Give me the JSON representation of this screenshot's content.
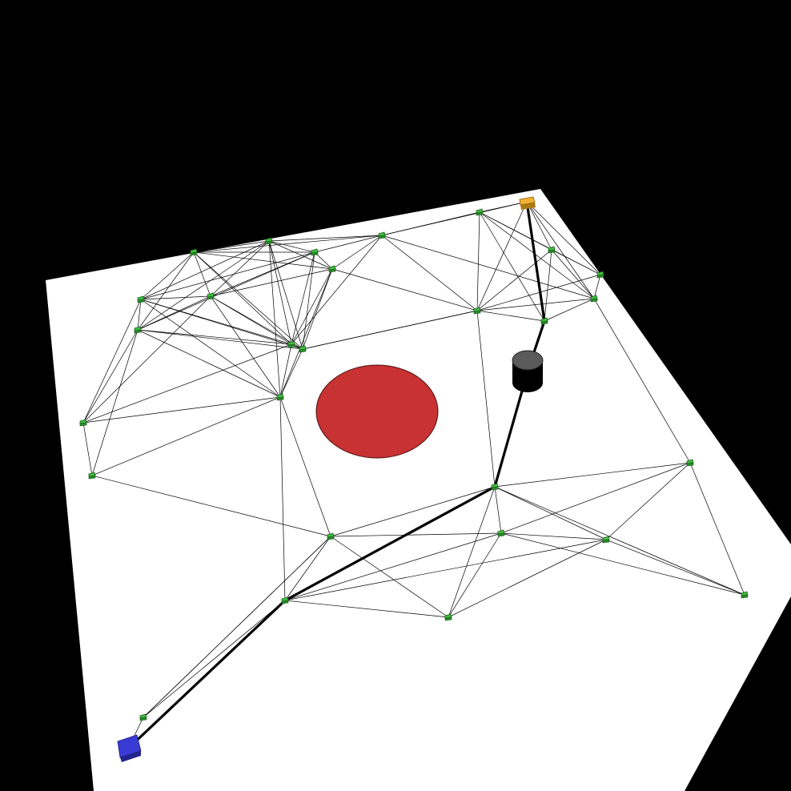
{
  "scene": {
    "description_type": "roadmap-planning-3d-render",
    "colors": {
      "background": "#000000",
      "floor": "#ffffff",
      "obstacle": "#c83232",
      "obstacle_outline": "#4a1010",
      "node_fill": "#3fbf3f",
      "node_side": "#2a8a2a",
      "edge": "#000000",
      "start": "#3a3ad6",
      "start_side": "#24248f",
      "goal": "#f2b233",
      "goal_side": "#b07a12",
      "robot_top": "#5a5a5a",
      "robot_body": "#000000"
    },
    "icons": {
      "start": "blue-cube-icon",
      "goal": "yellow-cube-icon",
      "robot": "cylinder-robot-icon",
      "node": "green-cube-node-icon",
      "obstacle": "red-disc-obstacle-icon"
    }
  }
}
